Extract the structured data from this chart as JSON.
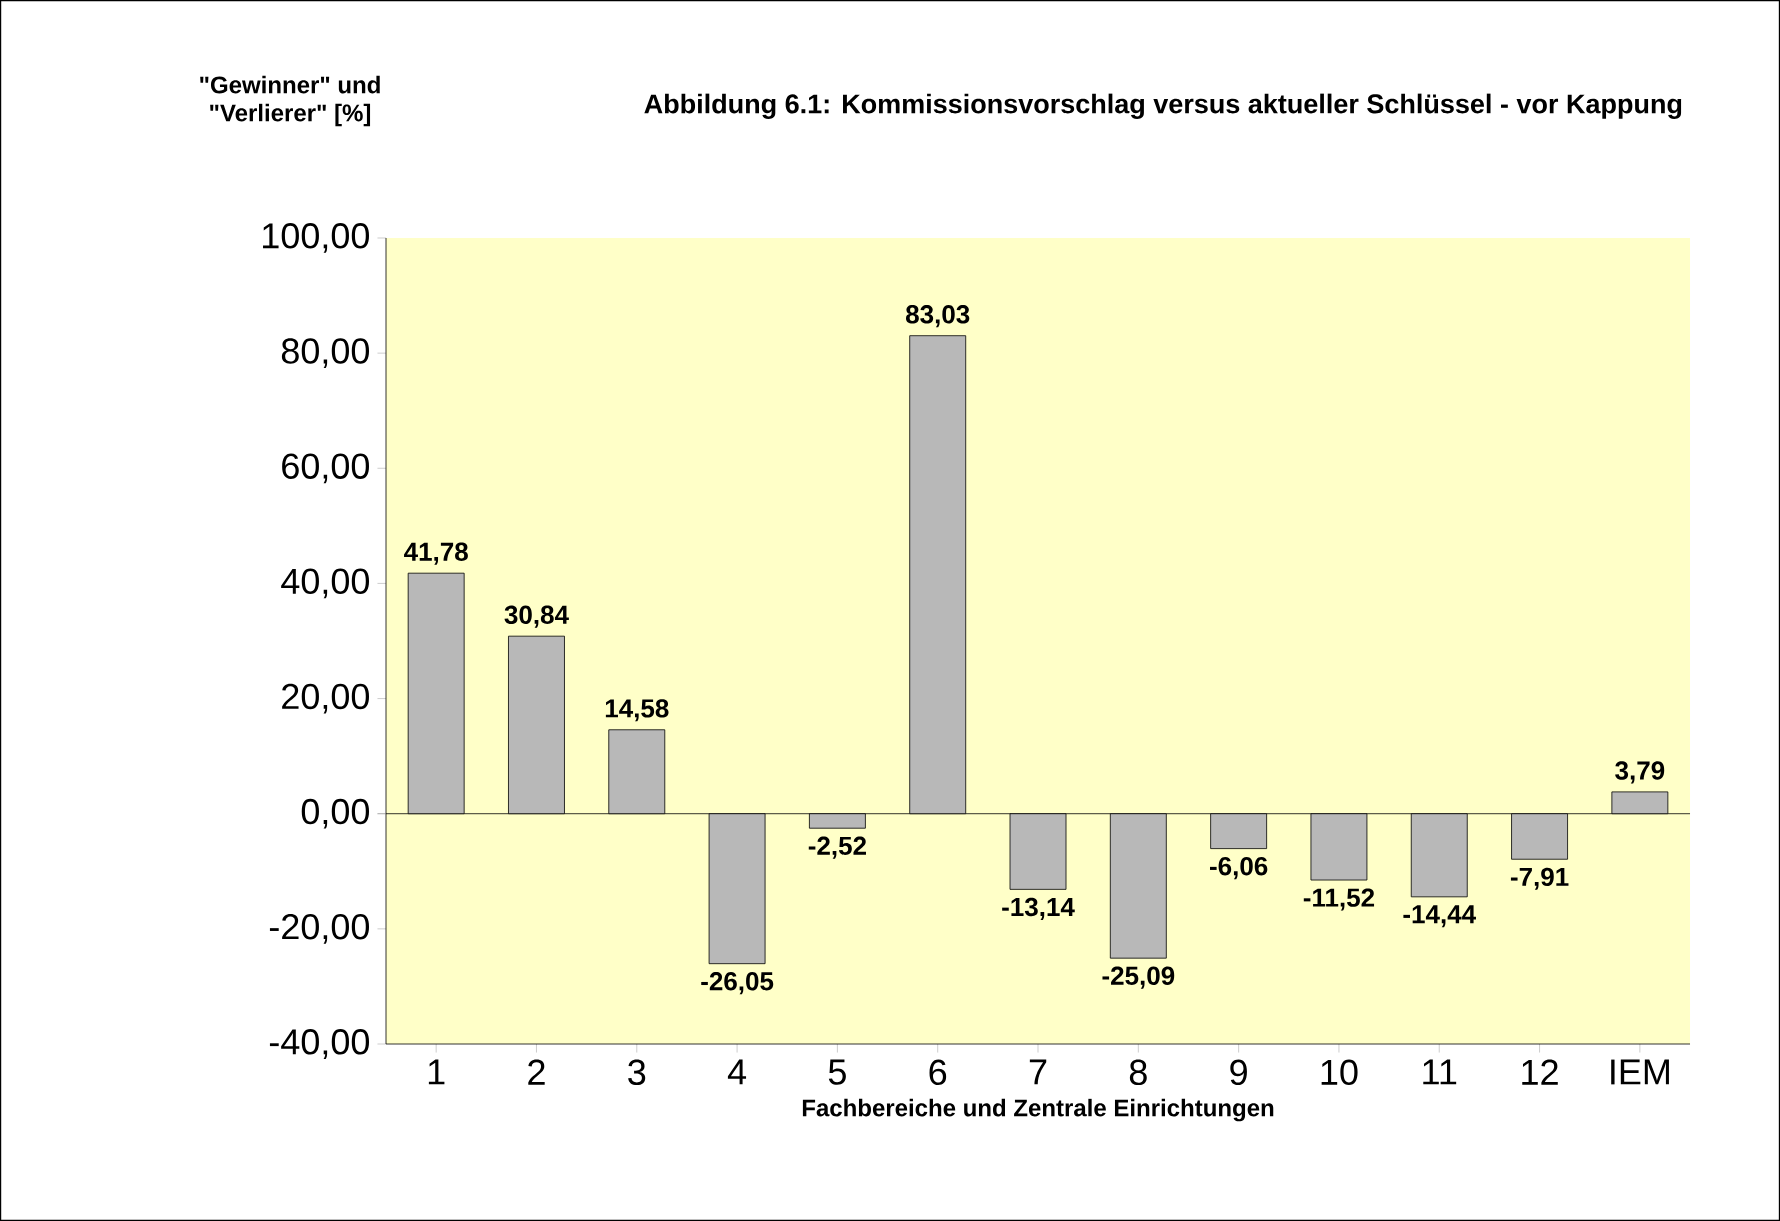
{
  "chart_data": {
    "type": "bar",
    "title": "Abbildung 6.1: Kommissionsvorschlag versus aktueller Schlüssel - vor Kappung",
    "ylabel": "\"Gewinner\" und \"Verlierer\" [%]",
    "xlabel": "Fachbereiche und Zentrale Einrichtungen",
    "categories": [
      "1",
      "2",
      "3",
      "4",
      "5",
      "6",
      "7",
      "8",
      "9",
      "10",
      "11",
      "12",
      "IEM"
    ],
    "values": [
      41.78,
      30.84,
      14.58,
      -26.05,
      -2.52,
      83.03,
      -13.14,
      -25.09,
      -6.06,
      -11.52,
      -14.44,
      -7.91,
      3.79
    ],
    "value_labels": [
      "41,78",
      "30,84",
      "14,58",
      "-26,05",
      "-2,52",
      "83,03",
      "-13,14",
      "-25,09",
      "-6,06",
      "-11,52",
      "-14,44",
      "-7,91",
      "3,79"
    ],
    "color": "#b8b8b8",
    "ylim": [
      -40,
      100
    ],
    "yticks": [
      {
        "value": -40,
        "label": "-40,00"
      },
      {
        "value": -20,
        "label": "-20,00"
      },
      {
        "value": 0,
        "label": "0,00"
      },
      {
        "value": 20,
        "label": "20,00"
      },
      {
        "value": 40,
        "label": "40,00"
      },
      {
        "value": 60,
        "label": "60,00"
      },
      {
        "value": 80,
        "label": "80,00"
      },
      {
        "value": 100,
        "label": "100,00"
      }
    ]
  }
}
